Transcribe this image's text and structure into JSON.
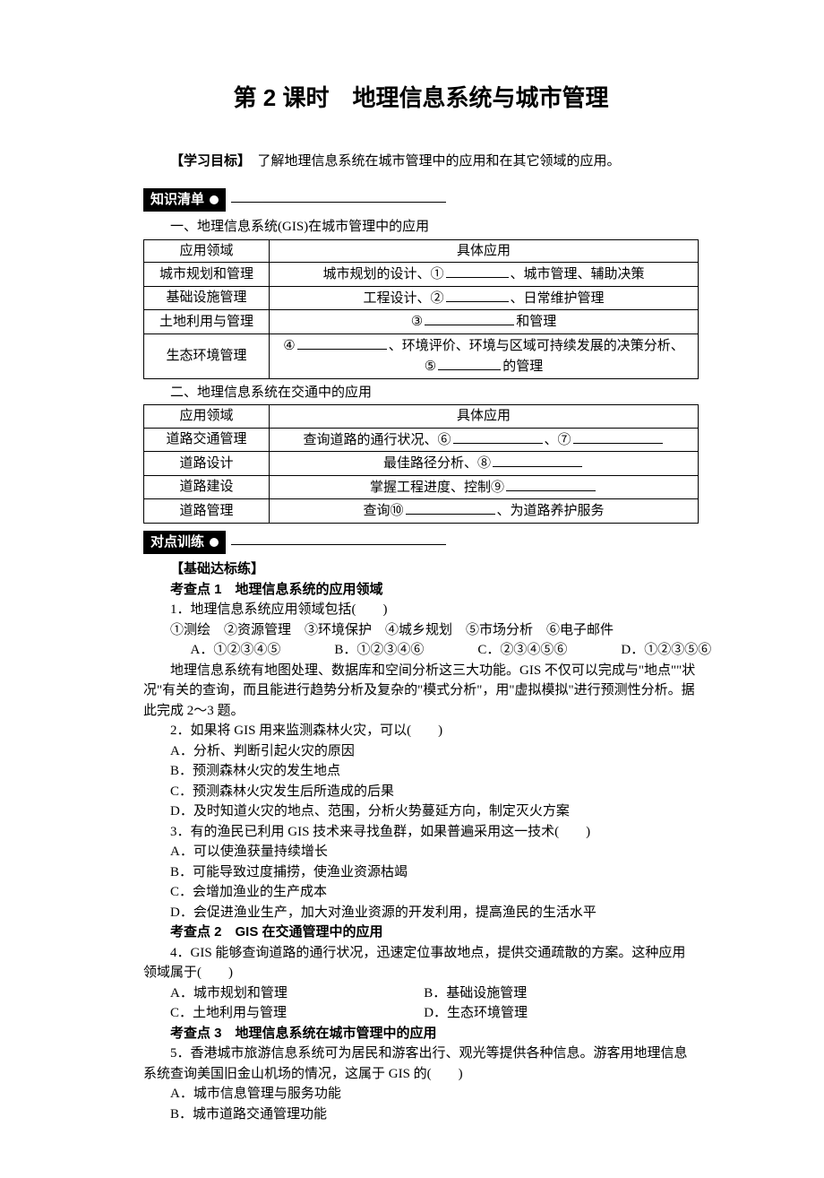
{
  "title": "第 2 课时　地理信息系统与城市管理",
  "goal_label": "【学习目标】",
  "goal_text": "　了解地理信息系统在城市管理中的应用和在其它领域的应用。",
  "badge1": "知识清单",
  "badge2": "对点训练",
  "section1_title": "一、地理信息系统(GIS)在城市管理中的应用",
  "table1": {
    "headers": [
      "应用领域",
      "具体应用"
    ],
    "rows": [
      {
        "domain": "城市规划和管理",
        "pre": "城市规划的设计、①",
        "post": "、城市管理、辅助决策"
      },
      {
        "domain": "基础设施管理",
        "pre": "工程设计、②",
        "post": "、日常维护管理"
      },
      {
        "domain": "土地利用与管理",
        "pre": "③",
        "post": "和管理"
      },
      {
        "domain": "生态环境管理",
        "pre1": "④",
        "mid": "、环境评价、环境与区域可持续发展的决策分析、",
        "pre2": "⑤",
        "post2": "的管理"
      }
    ]
  },
  "section2_title": "二、地理信息系统在交通中的应用",
  "table2": {
    "headers": [
      "应用领域",
      "具体应用"
    ],
    "rows": [
      {
        "domain": "道路交通管理",
        "pre": "查询道路的通行状况、⑥",
        "mid": "、⑦"
      },
      {
        "domain": "道路设计",
        "pre": "最佳路径分析、⑧"
      },
      {
        "domain": "道路建设",
        "pre": "掌握工程进度、控制⑨"
      },
      {
        "domain": "道路管理",
        "pre": "查询⑩",
        "post": "、为道路养护服务"
      }
    ]
  },
  "basic_label": "【基础达标练】",
  "kq1": "考查点 1　地理信息系统的应用领域",
  "q1": "1．地理信息系统应用领域包括(　　)",
  "q1_items": "①测绘　②资源管理　③环境保护　④城乡规划　⑤市场分析　⑥电子邮件",
  "q1_opts": {
    "A": "A．①②③④⑤",
    "B": "B．①②③④⑥",
    "C": "C．②③④⑤⑥",
    "D": "D．①②③⑤⑥"
  },
  "passage": "地理信息系统有地图处理、数据库和空间分析这三大功能。GIS 不仅可以完成与\"地点\"\"状况\"有关的查询，而且能进行趋势分析及复杂的\"模式分析\"，用\"虚拟模拟\"进行预测性分析。据此完成 2～3 题。",
  "q2": "2．如果将 GIS 用来监测森林火灾，可以(　　)",
  "q2A": "A．分析、判断引起火灾的原因",
  "q2B": "B．预测森林火灾的发生地点",
  "q2C": "C．预测森林火灾发生后所造成的后果",
  "q2D": "D．及时知道火灾的地点、范围，分析火势蔓延方向，制定灭火方案",
  "q3": "3．有的渔民已利用 GIS 技术来寻找鱼群，如果普遍采用这一技术(　　)",
  "q3A": "A．可以使渔获量持续增长",
  "q3B": "B．可能导致过度捕捞，使渔业资源枯竭",
  "q3C": "C．会增加渔业的生产成本",
  "q3D": "D．会促进渔业生产，加大对渔业资源的开发利用，提高渔民的生活水平",
  "kq2": "考查点 2　GIS 在交通管理中的应用",
  "q4": "4．GIS 能够查询道路的通行状况，迅速定位事故地点，提供交通疏散的方案。这种应用领域属于(　　)",
  "q4A": "A．城市规划和管理",
  "q4B": "B．基础设施管理",
  "q4C": "C．土地利用与管理",
  "q4D": "D．生态环境管理",
  "kq3": "考查点 3　地理信息系统在城市管理中的应用",
  "q5": "5．香港城市旅游信息系统可为居民和游客出行、观光等提供各种信息。游客用地理信息系统查询美国旧金山机场的情况，这属于 GIS 的(　　)",
  "q5A": "A．城市信息管理与服务功能",
  "q5B": "B．城市道路交通管理功能"
}
